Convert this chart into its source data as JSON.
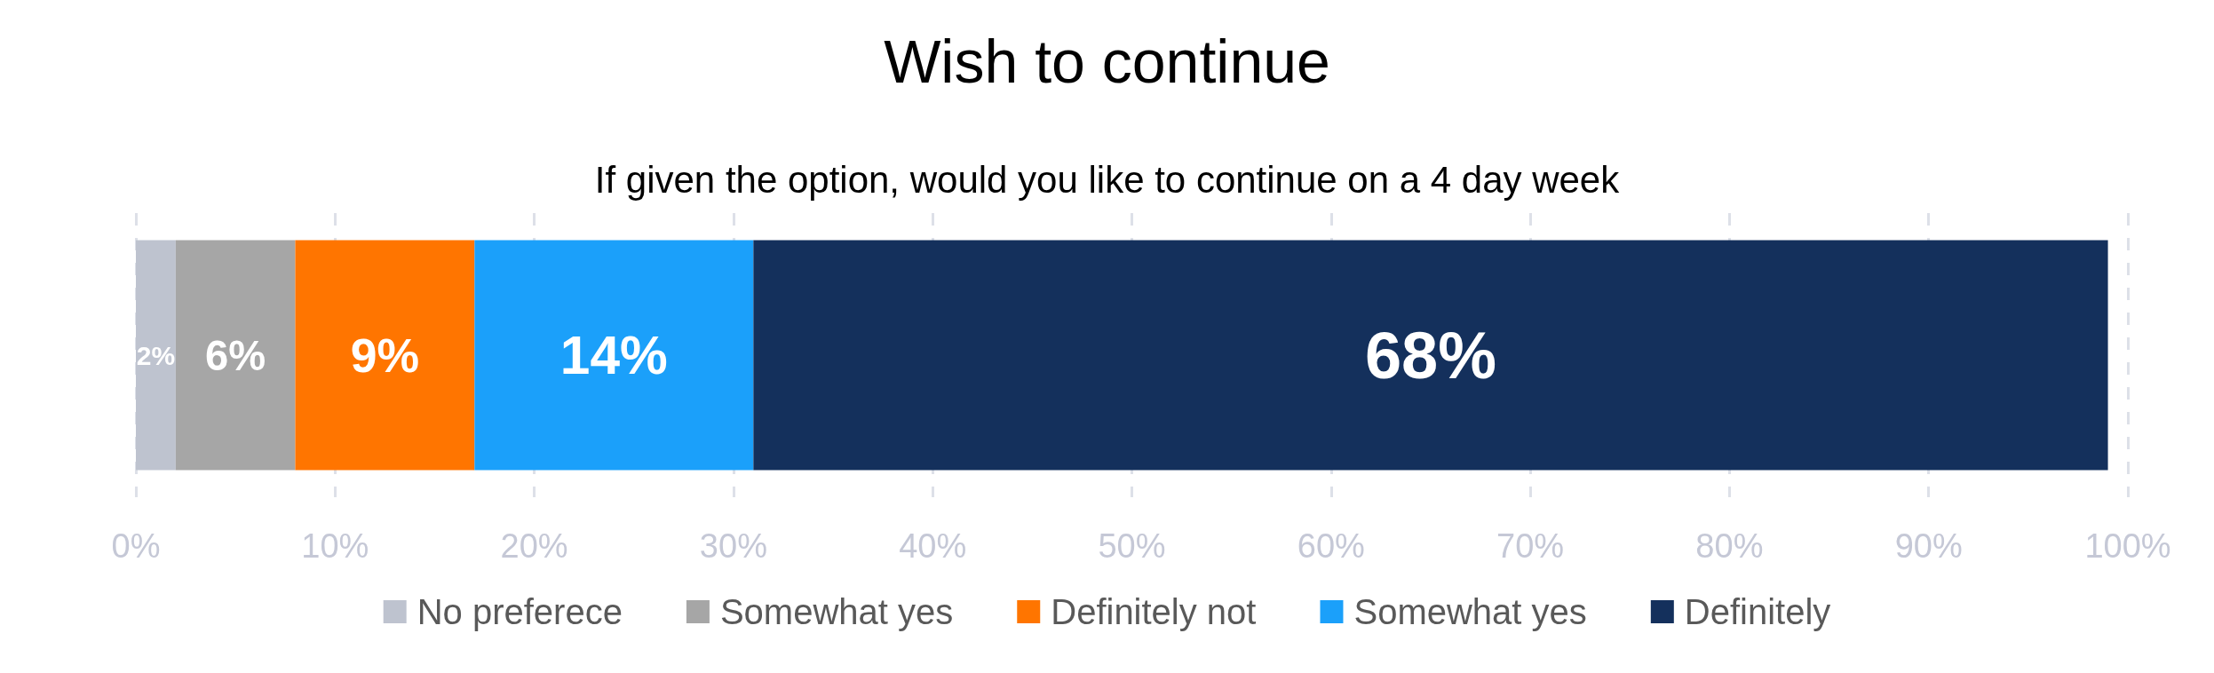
{
  "chart_data": {
    "type": "bar",
    "title": "Wish to continue",
    "subtitle": "If given the option, would you like to continue on a 4 day week",
    "orientation": "horizontal",
    "stacked": true,
    "categories": [
      null
    ],
    "series": [
      {
        "name": "No preferece",
        "color": "#bec3cf",
        "values": [
          2
        ],
        "value_labels": [
          "2%"
        ]
      },
      {
        "name": "Somewhat yes",
        "color": "#a6a6a6",
        "values": [
          6
        ],
        "value_labels": [
          "6%"
        ]
      },
      {
        "name": "Definitely not",
        "color": "#ff7500",
        "values": [
          9
        ],
        "value_labels": [
          "9%"
        ]
      },
      {
        "name": "Somewhat yes",
        "color": "#1ba0fa",
        "values": [
          14
        ],
        "value_labels": [
          "14%"
        ]
      },
      {
        "name": "Definitely",
        "color": "#14305c",
        "values": [
          68
        ],
        "value_labels": [
          "68%"
        ]
      }
    ],
    "xlim": [
      0,
      100
    ],
    "xticks": [
      {
        "value": 0,
        "label": "0%"
      },
      {
        "value": 10,
        "label": "10%"
      },
      {
        "value": 20,
        "label": "20%"
      },
      {
        "value": 30,
        "label": "30%"
      },
      {
        "value": 40,
        "label": "40%"
      },
      {
        "value": 50,
        "label": "50%"
      },
      {
        "value": 60,
        "label": "60%"
      },
      {
        "value": 70,
        "label": "70%"
      },
      {
        "value": 80,
        "label": "80%"
      },
      {
        "value": 90,
        "label": "90%"
      },
      {
        "value": 100,
        "label": "100%"
      }
    ],
    "grid": "x",
    "legend": "bottom"
  }
}
